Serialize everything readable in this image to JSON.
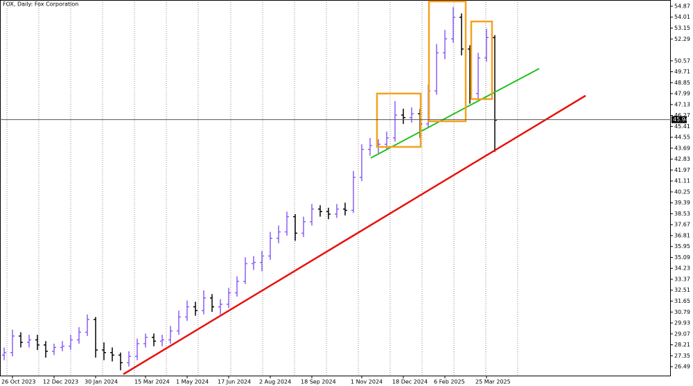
{
  "chart_data": {
    "type": "ohlc",
    "title": "FOX, Daily:  Fox Corporation",
    "categories": [
      null,
      "26 Oct 2023",
      null,
      null,
      null,
      null,
      "12 Dec 2023",
      null,
      null,
      null,
      null,
      "30 Jan 2024",
      null,
      null,
      null,
      null,
      null,
      "15 Mar 2024",
      null,
      null,
      null,
      null,
      "1 May 2024",
      null,
      null,
      null,
      null,
      "17 Jun 2024",
      null,
      null,
      null,
      null,
      "2 Aug 2024",
      null,
      null,
      null,
      null,
      "18 Sep 2024",
      null,
      null,
      null,
      null,
      null,
      "1 Nov 2024",
      null,
      null,
      null,
      null,
      "18 Dec 2024",
      null,
      null,
      null,
      null,
      "6 Feb 2025",
      null,
      null,
      null,
      null,
      "25 Mar 2025",
      null
    ],
    "open": [
      27.4,
      27.6,
      28.9,
      28.4,
      28.6,
      28.2,
      27.7,
      28.0,
      28.1,
      28.6,
      29.2,
      30.2,
      27.8,
      27.6,
      27.4,
      26.8,
      27.3,
      28.3,
      28.8,
      28.5,
      28.6,
      29.3,
      30.4,
      31.2,
      30.9,
      31.9,
      31.2,
      31.4,
      32.3,
      33.2,
      34.6,
      34.7,
      35.2,
      36.6,
      37.1,
      38.3,
      37.0,
      37.9,
      38.9,
      38.7,
      38.5,
      38.9,
      38.8,
      41.4,
      43.6,
      43.9,
      44.0,
      44.5,
      46.3,
      46.1,
      46.4,
      45.6,
      48.2,
      51.2,
      52.3,
      54.0,
      51.5,
      48.0,
      50.8,
      52.4
    ],
    "high": [
      28.0,
      29.4,
      29.2,
      29.0,
      29.0,
      28.5,
      28.3,
      28.5,
      29.0,
      29.6,
      30.6,
      30.4,
      28.4,
      28.0,
      27.6,
      27.7,
      28.7,
      29.1,
      29.1,
      29.0,
      29.7,
      30.9,
      31.7,
      31.6,
      32.5,
      32.2,
      31.8,
      32.7,
      33.6,
      35.1,
      35.2,
      35.6,
      37.1,
      37.6,
      38.7,
      38.5,
      38.3,
      39.3,
      39.2,
      39.0,
      39.3,
      39.4,
      41.9,
      44.0,
      44.5,
      44.4,
      45.0,
      47.4,
      46.8,
      46.9,
      46.8,
      48.7,
      51.9,
      53.0,
      54.8,
      54.3,
      51.8,
      51.2,
      53.1,
      52.6
    ],
    "low": [
      27.0,
      27.3,
      28.0,
      28.0,
      27.8,
      27.2,
      27.4,
      27.7,
      27.8,
      28.3,
      28.9,
      27.2,
      27.0,
      26.9,
      26.2,
      26.5,
      27.0,
      28.0,
      28.1,
      28.1,
      28.3,
      29.0,
      30.1,
      30.5,
      30.6,
      30.8,
      30.6,
      31.1,
      32.0,
      33.0,
      34.1,
      34.0,
      34.9,
      36.2,
      36.8,
      36.4,
      36.7,
      37.6,
      38.3,
      38.1,
      38.2,
      38.4,
      38.6,
      41.1,
      43.1,
      43.3,
      43.6,
      44.2,
      45.6,
      45.7,
      44.5,
      45.3,
      47.9,
      50.7,
      52.0,
      51.0,
      47.2,
      47.6,
      50.5,
      43.4
    ],
    "close": [
      27.6,
      28.9,
      28.4,
      28.6,
      28.2,
      27.7,
      28.0,
      28.1,
      28.6,
      29.2,
      30.2,
      27.8,
      27.6,
      27.4,
      26.8,
      27.3,
      28.3,
      28.8,
      28.5,
      28.6,
      29.3,
      30.4,
      31.2,
      30.9,
      31.9,
      31.2,
      31.4,
      32.3,
      33.2,
      34.6,
      34.7,
      35.2,
      36.6,
      37.1,
      38.3,
      37.0,
      37.9,
      38.9,
      38.7,
      38.5,
      38.9,
      38.8,
      41.4,
      43.6,
      43.9,
      44.0,
      44.5,
      46.3,
      46.1,
      46.4,
      45.6,
      48.2,
      51.2,
      52.3,
      54.0,
      51.5,
      48.0,
      50.8,
      52.4,
      45.9
    ],
    "up_color": "#8b5cf6",
    "down_color": "#000000",
    "current_price": 45.94,
    "ylim": [
      25.73,
      55.36
    ],
    "yticks": [
      26.49,
      27.35,
      28.21,
      29.07,
      29.93,
      30.79,
      31.65,
      32.51,
      33.37,
      34.23,
      35.09,
      35.95,
      36.81,
      37.67,
      38.53,
      39.39,
      40.25,
      41.11,
      41.97,
      42.83,
      43.69,
      44.55,
      45.41,
      46.27,
      47.13,
      47.99,
      48.85,
      49.71,
      50.57,
      52.29,
      53.15,
      54.01,
      54.87
    ]
  }
}
